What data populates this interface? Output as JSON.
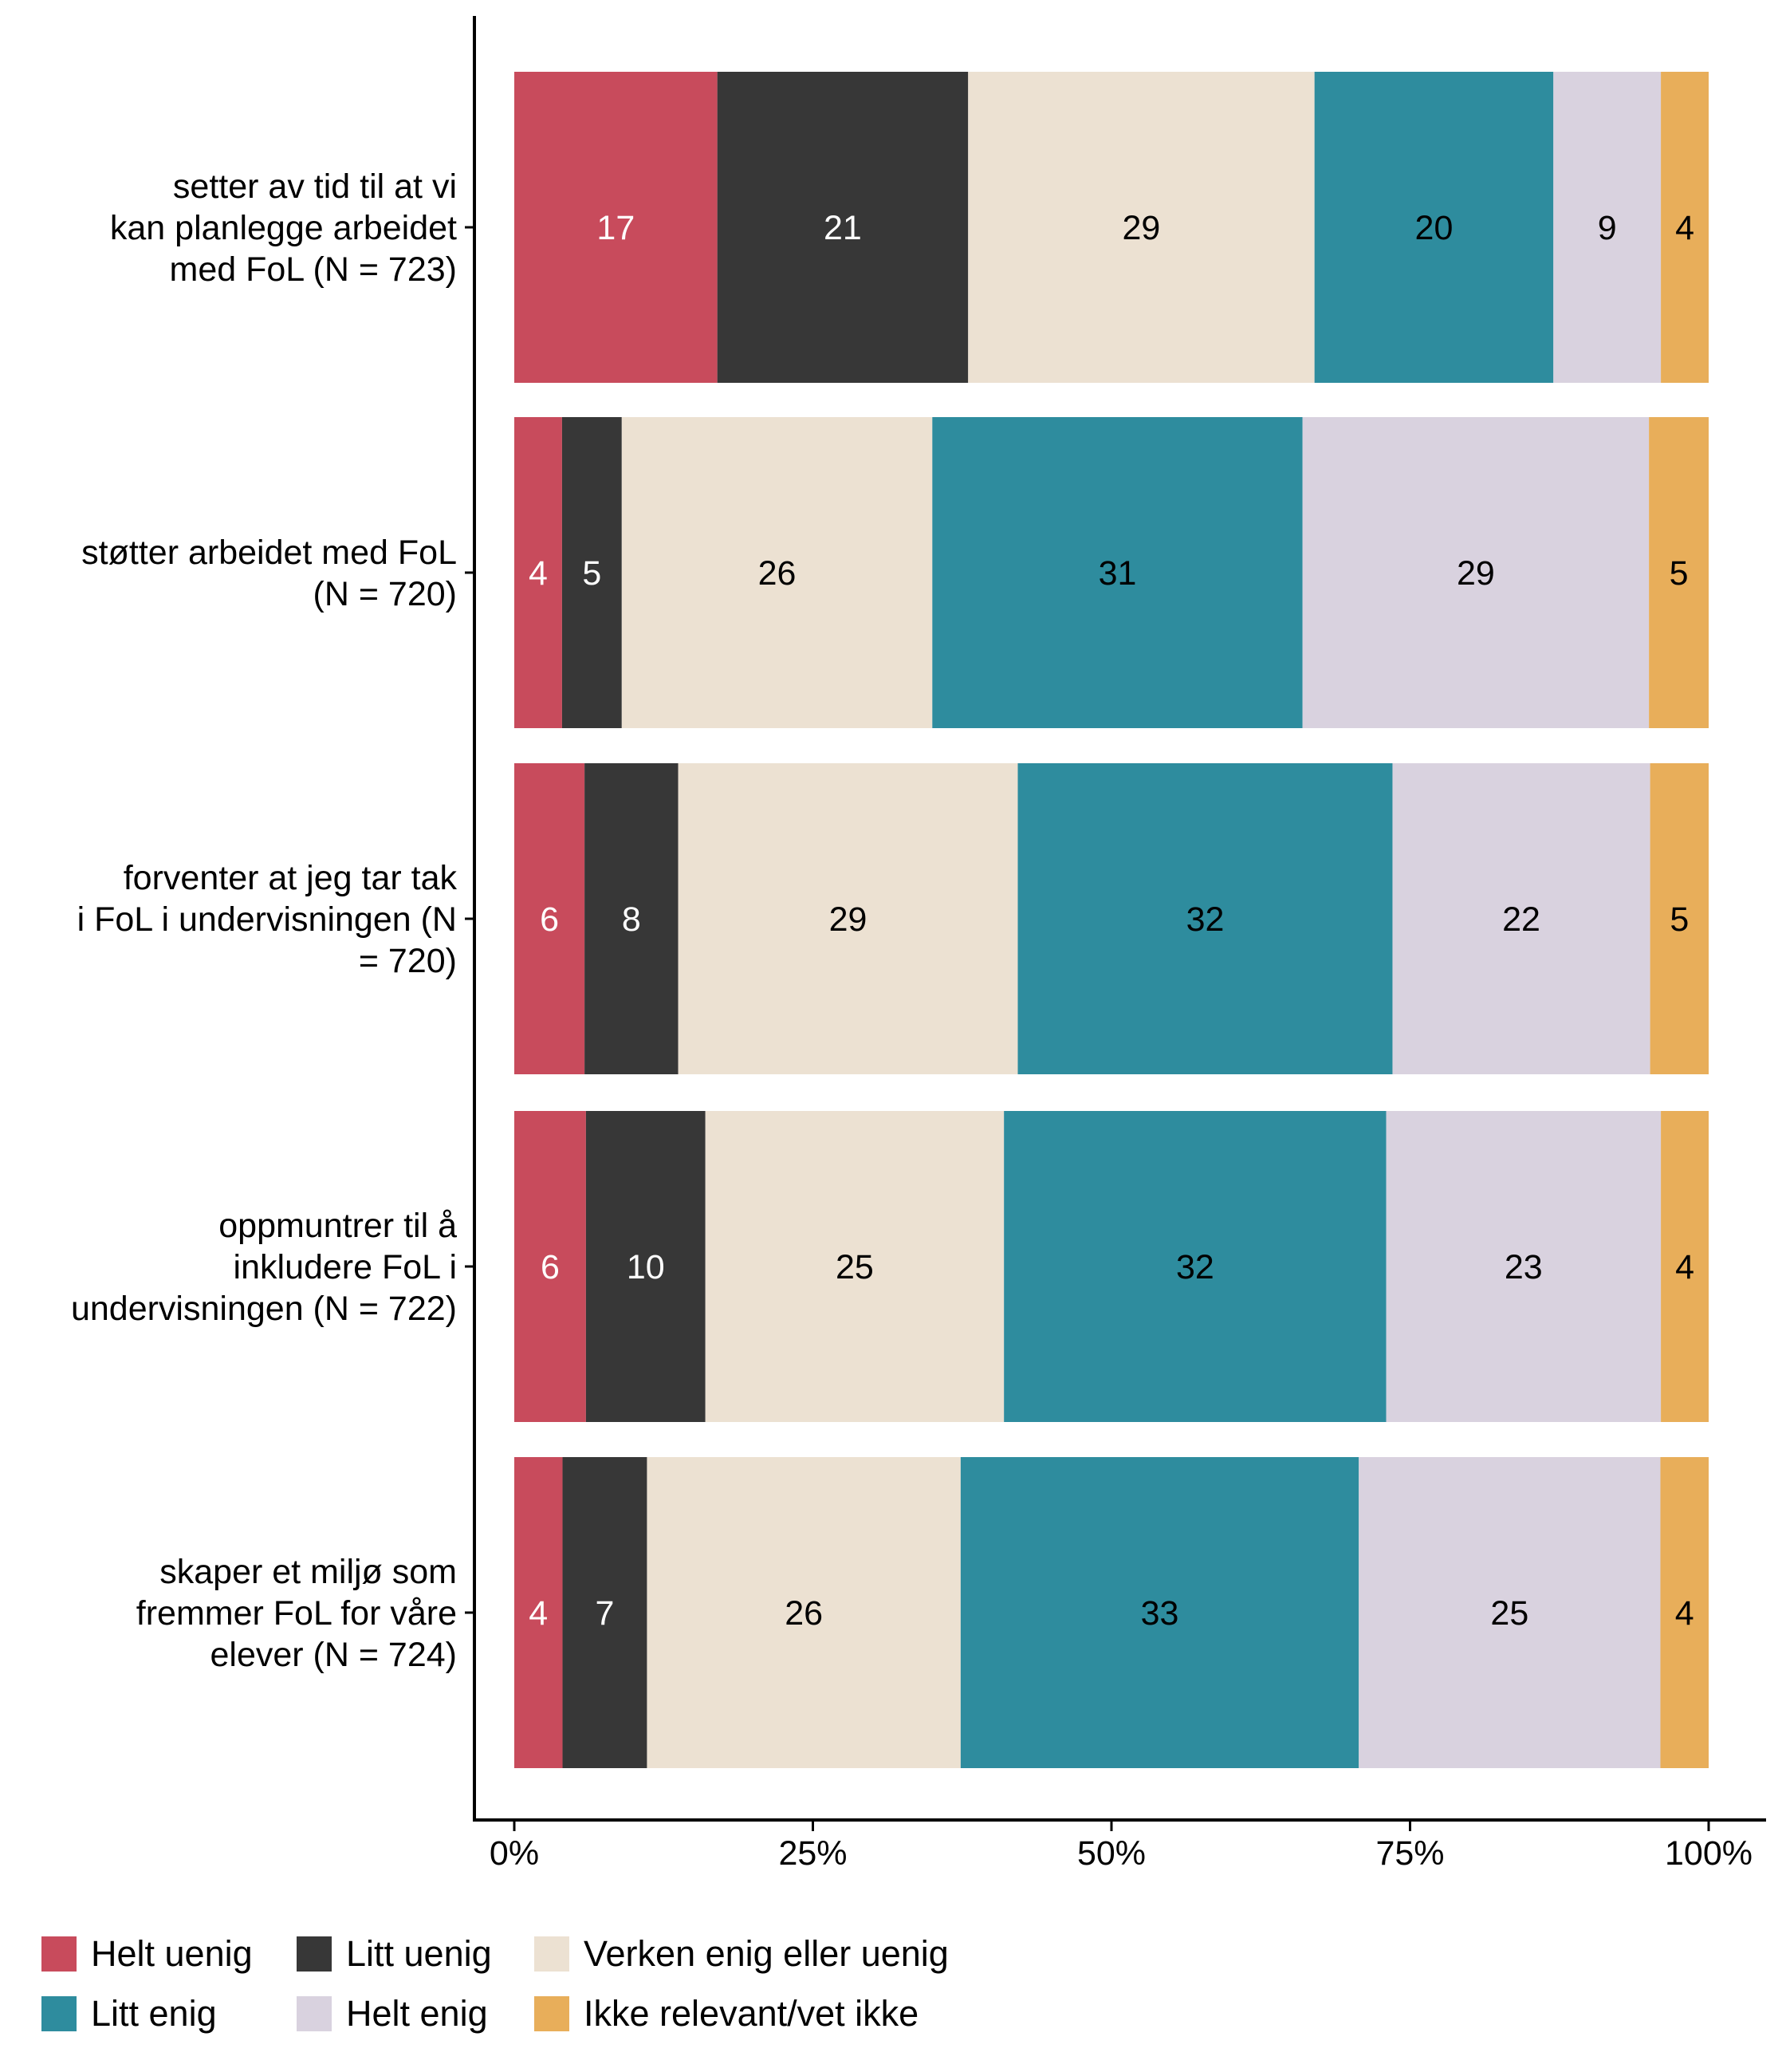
{
  "chart_data": {
    "type": "bar",
    "orientation": "horizontal",
    "stacked": true,
    "normalized": true,
    "title": "",
    "xlabel": "",
    "ylabel": "",
    "xlim": [
      0,
      100
    ],
    "x_ticks": [
      "0%",
      "25%",
      "50%",
      "75%",
      "100%"
    ],
    "x_tick_values": [
      0,
      25,
      50,
      75,
      100
    ],
    "grid": false,
    "legend_position": "bottom-left",
    "categories": [
      [
        "setter av tid til at vi",
        "kan planlegge arbeidet",
        "med FoL (N = 723)"
      ],
      [
        "støtter arbeidet med FoL",
        "(N = 720)"
      ],
      [
        "forventer at jeg tar tak",
        "i FoL i undervisningen (N",
        "= 720)"
      ],
      [
        "oppmuntrer til å",
        "inkludere FoL i",
        "undervisningen (N = 722)"
      ],
      [
        "skaper et miljø som",
        "fremmer FoL for våre",
        "elever (N = 724)"
      ]
    ],
    "series": [
      {
        "name": "Helt uenig",
        "color": "#C84B5C",
        "label_color": "#FFFFFF",
        "values": [
          17,
          4,
          6,
          6,
          4
        ]
      },
      {
        "name": "Litt uenig",
        "color": "#373737",
        "label_color": "#FFFFFF",
        "values": [
          21,
          5,
          8,
          10,
          7
        ]
      },
      {
        "name": "Verken enig eller uenig",
        "color": "#ECE1D2",
        "label_color": "#000000",
        "values": [
          29,
          26,
          29,
          25,
          26
        ]
      },
      {
        "name": "Litt enig",
        "color": "#2E8C9E",
        "label_color": "#000000",
        "values": [
          20,
          31,
          32,
          32,
          33
        ]
      },
      {
        "name": "Helt enig",
        "color": "#D9D2DF",
        "label_color": "#000000",
        "values": [
          9,
          29,
          22,
          23,
          25
        ]
      },
      {
        "name": "Ikke relevant/vet ikke",
        "color": "#E8AE5A",
        "label_color": "#000000",
        "values": [
          4,
          5,
          5,
          4,
          4
        ]
      }
    ],
    "legend_rows": [
      [
        "Helt uenig",
        "Litt uenig",
        "Verken enig eller uenig"
      ],
      [
        "Litt enig",
        "Helt enig",
        "Ikke relevant/vet ikke"
      ]
    ]
  }
}
